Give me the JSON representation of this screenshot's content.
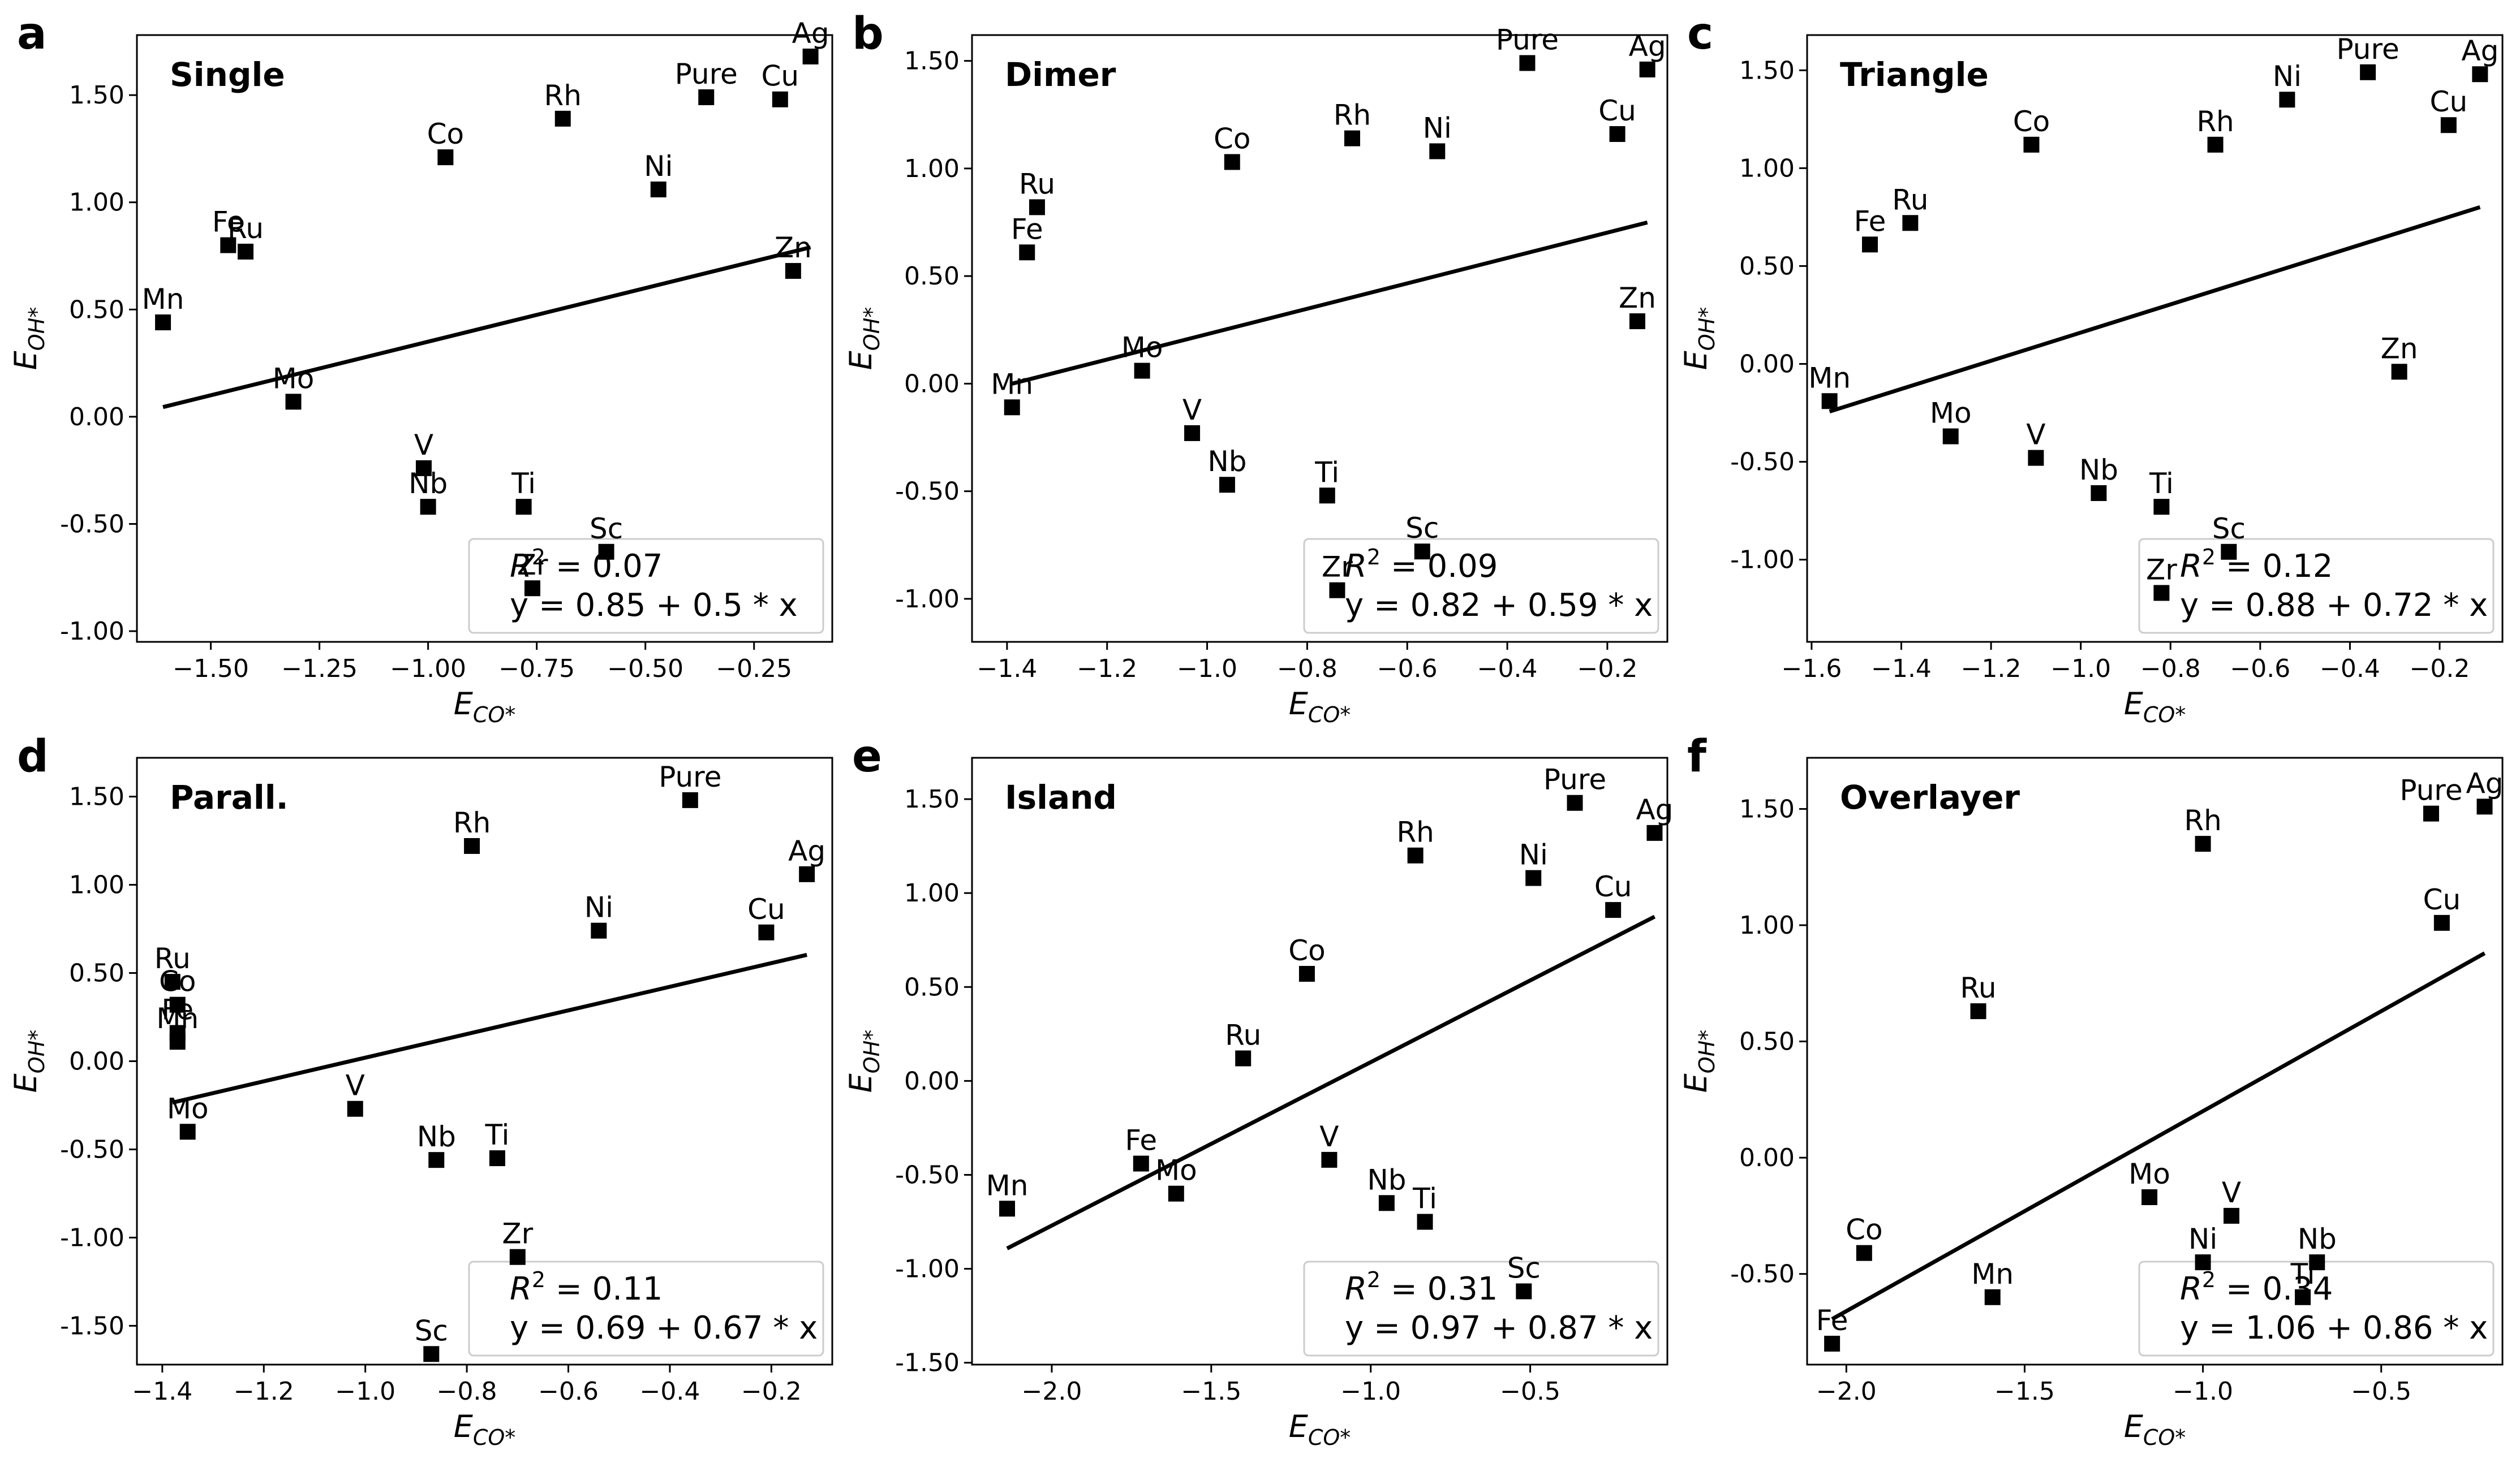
{
  "figure": {
    "colors": {
      "marker": "#000000",
      "line": "#000000",
      "stats_border": "#cccccc",
      "faded_label": "#bbbbbb"
    },
    "x_label": {
      "base": "E",
      "sub": "CO*"
    },
    "y_label": {
      "base": "E",
      "sub": "OH*"
    }
  },
  "chart_data": [
    {
      "type": "scatter",
      "letter": "a",
      "title": "Single",
      "xlim": [
        -1.67,
        -0.07
      ],
      "ylim": [
        -1.05,
        1.78
      ],
      "xticks": [
        -1.5,
        -1.25,
        -1.0,
        -0.75,
        -0.5,
        -0.25
      ],
      "xtick_labels": [
        "−1.50",
        "−1.25",
        "−1.00",
        "−0.75",
        "−0.50",
        "−0.25"
      ],
      "yticks": [
        -1.0,
        -0.5,
        0.0,
        0.5,
        1.0,
        1.5
      ],
      "ytick_labels": [
        "-1.00",
        "-0.50",
        "0.00",
        "0.50",
        "1.00",
        "1.50"
      ],
      "points": [
        {
          "label": "Ag",
          "x": -0.12,
          "y": 1.68
        },
        {
          "label": "Pure",
          "x": -0.36,
          "y": 1.49
        },
        {
          "label": "Cu",
          "x": -0.19,
          "y": 1.48
        },
        {
          "label": "Rh",
          "x": -0.69,
          "y": 1.39
        },
        {
          "label": "Co",
          "x": -0.96,
          "y": 1.21
        },
        {
          "label": "Ni",
          "x": -0.47,
          "y": 1.06
        },
        {
          "label": "Fe",
          "x": -1.46,
          "y": 0.8
        },
        {
          "label": "Ru",
          "x": -1.42,
          "y": 0.77
        },
        {
          "label": "Zn",
          "x": -0.16,
          "y": 0.68
        },
        {
          "label": "Mn",
          "x": -1.61,
          "y": 0.44
        },
        {
          "label": "Mo",
          "x": -1.31,
          "y": 0.07
        },
        {
          "label": "V",
          "x": -1.01,
          "y": -0.24
        },
        {
          "label": "Nb",
          "x": -1.0,
          "y": -0.42
        },
        {
          "label": "Ti",
          "x": -0.78,
          "y": -0.42
        },
        {
          "label": "Sc",
          "x": -0.59,
          "y": -0.63,
          "faded": true
        },
        {
          "label": "Zr",
          "x": -0.76,
          "y": -0.8,
          "faded": true
        }
      ],
      "fit": {
        "intercept": 0.85,
        "slope": 0.5,
        "x_range": [
          -1.61,
          -0.12
        ]
      },
      "r2_label": "R",
      "r2_value": "0.07",
      "equation": "y = 0.85 + 0.5 * x"
    },
    {
      "type": "scatter",
      "letter": "b",
      "title": "Dimer",
      "xlim": [
        -1.47,
        -0.08
      ],
      "ylim": [
        -1.2,
        1.62
      ],
      "xticks": [
        -1.4,
        -1.2,
        -1.0,
        -0.8,
        -0.6,
        -0.4,
        -0.2
      ],
      "xtick_labels": [
        "−1.4",
        "−1.2",
        "−1.0",
        "−0.8",
        "−0.6",
        "−0.4",
        "−0.2"
      ],
      "yticks": [
        -1.0,
        -0.5,
        0.0,
        0.5,
        1.0,
        1.5
      ],
      "ytick_labels": [
        "-1.00",
        "-0.50",
        "0.00",
        "0.50",
        "1.00",
        "1.50"
      ],
      "points": [
        {
          "label": "Pure",
          "x": -0.36,
          "y": 1.49
        },
        {
          "label": "Ag",
          "x": -0.12,
          "y": 1.46
        },
        {
          "label": "Cu",
          "x": -0.18,
          "y": 1.16
        },
        {
          "label": "Rh",
          "x": -0.71,
          "y": 1.14
        },
        {
          "label": "Ni",
          "x": -0.54,
          "y": 1.08
        },
        {
          "label": "Co",
          "x": -0.95,
          "y": 1.03
        },
        {
          "label": "Ru",
          "x": -1.34,
          "y": 0.82
        },
        {
          "label": "Fe",
          "x": -1.36,
          "y": 0.61
        },
        {
          "label": "Zn",
          "x": -0.14,
          "y": 0.29
        },
        {
          "label": "Mo",
          "x": -1.13,
          "y": 0.06
        },
        {
          "label": "Mn",
          "x": -1.39,
          "y": -0.11
        },
        {
          "label": "V",
          "x": -1.03,
          "y": -0.23
        },
        {
          "label": "Nb",
          "x": -0.96,
          "y": -0.47
        },
        {
          "label": "Ti",
          "x": -0.76,
          "y": -0.52
        },
        {
          "label": "Sc",
          "x": -0.57,
          "y": -0.78,
          "faded": true
        },
        {
          "label": "Zr",
          "x": -0.74,
          "y": -0.96,
          "faded": true
        }
      ],
      "fit": {
        "intercept": 0.82,
        "slope": 0.59,
        "x_range": [
          -1.39,
          -0.12
        ]
      },
      "r2_label": "R",
      "r2_value": "0.09",
      "equation": "y = 0.82 + 0.59 * x"
    },
    {
      "type": "scatter",
      "letter": "c",
      "title": "Triangle",
      "xlim": [
        -1.61,
        -0.06
      ],
      "ylim": [
        -1.42,
        1.68
      ],
      "xticks": [
        -1.6,
        -1.4,
        -1.2,
        -1.0,
        -0.8,
        -0.6,
        -0.4,
        -0.2
      ],
      "xtick_labels": [
        "−1.6",
        "−1.4",
        "−1.2",
        "−1.0",
        "−0.8",
        "−0.6",
        "−0.4",
        "−0.2"
      ],
      "yticks": [
        -1.0,
        -0.5,
        0.0,
        0.5,
        1.0,
        1.5
      ],
      "ytick_labels": [
        "-1.00",
        "-0.50",
        "0.00",
        "0.50",
        "1.00",
        "1.50"
      ],
      "points": [
        {
          "label": "Pure",
          "x": -0.36,
          "y": 1.49
        },
        {
          "label": "Ag",
          "x": -0.11,
          "y": 1.48
        },
        {
          "label": "Ni",
          "x": -0.54,
          "y": 1.35
        },
        {
          "label": "Cu",
          "x": -0.18,
          "y": 1.22
        },
        {
          "label": "Co",
          "x": -1.11,
          "y": 1.12
        },
        {
          "label": "Rh",
          "x": -0.7,
          "y": 1.12
        },
        {
          "label": "Ru",
          "x": -1.38,
          "y": 0.72
        },
        {
          "label": "Fe",
          "x": -1.47,
          "y": 0.61
        },
        {
          "label": "Zn",
          "x": -0.29,
          "y": -0.04
        },
        {
          "label": "Mn",
          "x": -1.56,
          "y": -0.19
        },
        {
          "label": "Mo",
          "x": -1.29,
          "y": -0.37
        },
        {
          "label": "V",
          "x": -1.1,
          "y": -0.48
        },
        {
          "label": "Nb",
          "x": -0.96,
          "y": -0.66
        },
        {
          "label": "Ti",
          "x": -0.82,
          "y": -0.73
        },
        {
          "label": "Sc",
          "x": -0.67,
          "y": -0.96,
          "faded": true
        },
        {
          "label": "Zr",
          "x": -0.82,
          "y": -1.17,
          "faded": true
        }
      ],
      "fit": {
        "intercept": 0.88,
        "slope": 0.72,
        "x_range": [
          -1.56,
          -0.11
        ]
      },
      "r2_label": "R",
      "r2_value": "0.12",
      "equation": "y = 0.88 + 0.72 * x"
    },
    {
      "type": "scatter",
      "letter": "d",
      "title": "Parall.",
      "xlim": [
        -1.45,
        -0.08
      ],
      "ylim": [
        -1.72,
        1.72
      ],
      "xticks": [
        -1.4,
        -1.2,
        -1.0,
        -0.8,
        -0.6,
        -0.4,
        -0.2
      ],
      "xtick_labels": [
        "−1.4",
        "−1.2",
        "−1.0",
        "−0.8",
        "−0.6",
        "−0.4",
        "−0.2"
      ],
      "yticks": [
        -1.5,
        -1.0,
        -0.5,
        0.0,
        0.5,
        1.0,
        1.5
      ],
      "ytick_labels": [
        "-1.50",
        "-1.00",
        "-0.50",
        "0.00",
        "0.50",
        "1.00",
        "1.50"
      ],
      "points": [
        {
          "label": "Pure",
          "x": -0.36,
          "y": 1.48
        },
        {
          "label": "Rh",
          "x": -0.79,
          "y": 1.22
        },
        {
          "label": "Ag",
          "x": -0.13,
          "y": 1.06
        },
        {
          "label": "Ni",
          "x": -0.54,
          "y": 0.74
        },
        {
          "label": "Cu",
          "x": -0.21,
          "y": 0.73
        },
        {
          "label": "Ru",
          "x": -1.38,
          "y": 0.45
        },
        {
          "label": "Co",
          "x": -1.37,
          "y": 0.32
        },
        {
          "label": "Fe",
          "x": -1.37,
          "y": 0.16
        },
        {
          "label": "Mn",
          "x": -1.37,
          "y": 0.11
        },
        {
          "label": "V",
          "x": -1.02,
          "y": -0.27
        },
        {
          "label": "Mo",
          "x": -1.35,
          "y": -0.4
        },
        {
          "label": "Nb",
          "x": -0.86,
          "y": -0.56
        },
        {
          "label": "Ti",
          "x": -0.74,
          "y": -0.55
        },
        {
          "label": "Zr",
          "x": -0.7,
          "y": -1.11
        },
        {
          "label": "Sc",
          "x": -0.87,
          "y": -1.66
        }
      ],
      "fit": {
        "intercept": 0.69,
        "slope": 0.67,
        "x_range": [
          -1.38,
          -0.13
        ]
      },
      "r2_label": "R",
      "r2_value": "0.11",
      "equation": "y = 0.69 + 0.67 * x"
    },
    {
      "type": "scatter",
      "letter": "e",
      "title": "Island",
      "xlim": [
        -2.25,
        -0.07
      ],
      "ylim": [
        -1.51,
        1.72
      ],
      "xticks": [
        -2.0,
        -1.5,
        -1.0,
        -0.5
      ],
      "xtick_labels": [
        "−2.0",
        "−1.5",
        "−1.0",
        "−0.5"
      ],
      "yticks": [
        -1.5,
        -1.0,
        -0.5,
        0.0,
        0.5,
        1.0,
        1.5
      ],
      "ytick_labels": [
        "-1.50",
        "-1.00",
        "-0.50",
        "0.00",
        "0.50",
        "1.00",
        "1.50"
      ],
      "points": [
        {
          "label": "Pure",
          "x": -0.36,
          "y": 1.48
        },
        {
          "label": "Ag",
          "x": -0.11,
          "y": 1.32
        },
        {
          "label": "Rh",
          "x": -0.86,
          "y": 1.2
        },
        {
          "label": "Ni",
          "x": -0.49,
          "y": 1.08
        },
        {
          "label": "Cu",
          "x": -0.24,
          "y": 0.91
        },
        {
          "label": "Co",
          "x": -1.2,
          "y": 0.57
        },
        {
          "label": "Ru",
          "x": -1.4,
          "y": 0.12
        },
        {
          "label": "Fe",
          "x": -1.72,
          "y": -0.44
        },
        {
          "label": "V",
          "x": -1.13,
          "y": -0.42
        },
        {
          "label": "Mo",
          "x": -1.61,
          "y": -0.6
        },
        {
          "label": "Nb",
          "x": -0.95,
          "y": -0.65
        },
        {
          "label": "Mn",
          "x": -2.14,
          "y": -0.68
        },
        {
          "label": "Ti",
          "x": -0.83,
          "y": -0.75
        },
        {
          "label": "Sc",
          "x": -0.52,
          "y": -1.12,
          "faded": true
        }
      ],
      "fit": {
        "intercept": 0.97,
        "slope": 0.87,
        "x_range": [
          -2.14,
          -0.11
        ]
      },
      "r2_label": "R",
      "r2_value": "0.31",
      "equation": "y = 0.97 + 0.87 * x"
    },
    {
      "type": "scatter",
      "letter": "f",
      "title": "Overlayer",
      "xlim": [
        -2.11,
        -0.16
      ],
      "ylim": [
        -0.89,
        1.72
      ],
      "xticks": [
        -2.0,
        -1.5,
        -1.0,
        -0.5
      ],
      "xtick_labels": [
        "−2.0",
        "−1.5",
        "−1.0",
        "−0.5"
      ],
      "yticks": [
        -0.5,
        0.0,
        0.5,
        1.0,
        1.5
      ],
      "ytick_labels": [
        "-0.50",
        "0.00",
        "0.50",
        "1.00",
        "1.50"
      ],
      "points": [
        {
          "label": "Ag",
          "x": -0.21,
          "y": 1.51
        },
        {
          "label": "Pure",
          "x": -0.36,
          "y": 1.48
        },
        {
          "label": "Rh",
          "x": -1.0,
          "y": 1.35
        },
        {
          "label": "Cu",
          "x": -0.33,
          "y": 1.01
        },
        {
          "label": "Ru",
          "x": -1.63,
          "y": 0.63
        },
        {
          "label": "Mo",
          "x": -1.15,
          "y": -0.17
        },
        {
          "label": "V",
          "x": -0.92,
          "y": -0.25
        },
        {
          "label": "Co",
          "x": -1.95,
          "y": -0.41
        },
        {
          "label": "Ni",
          "x": -1.0,
          "y": -0.45
        },
        {
          "label": "Nb",
          "x": -0.68,
          "y": -0.45
        },
        {
          "label": "Ti",
          "x": -0.72,
          "y": -0.6,
          "faded": true
        },
        {
          "label": "Mn",
          "x": -1.59,
          "y": -0.6
        },
        {
          "label": "Fe",
          "x": -2.04,
          "y": -0.8
        }
      ],
      "fit": {
        "intercept": 1.06,
        "slope": 0.86,
        "x_range": [
          -2.04,
          -0.21
        ]
      },
      "r2_label": "R",
      "r2_value": "0.34",
      "equation": "y = 1.06 + 0.86 * x"
    }
  ]
}
